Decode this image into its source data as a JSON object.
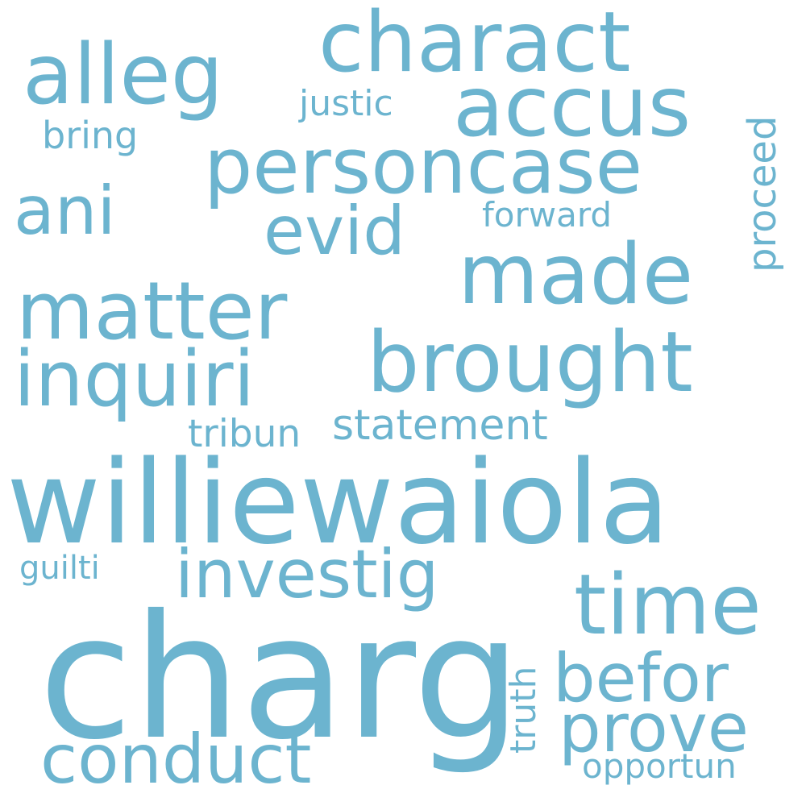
{
  "colors": {
    "background": "#ffffff",
    "word": "#6cb4cf"
  },
  "words": {
    "charg": "charg",
    "williewaiola": "williewaiola",
    "charact": "charact",
    "alleg": "alleg",
    "accus": "accus",
    "personcase": "personcase",
    "made": "made",
    "matter": "matter",
    "inquiri": "inquiri",
    "brought": "brought",
    "investig": "investig",
    "time": "time",
    "befor": "befor",
    "prove": "prove",
    "conduct": "conduct",
    "ani": "ani",
    "evid": "evid",
    "statement": "statement",
    "tribun": "tribun",
    "justic": "justic",
    "bring": "bring",
    "forward": "forward",
    "guilti": "guilti",
    "opportun": "opportun",
    "proceed": "proceed",
    "truth": "truth"
  }
}
